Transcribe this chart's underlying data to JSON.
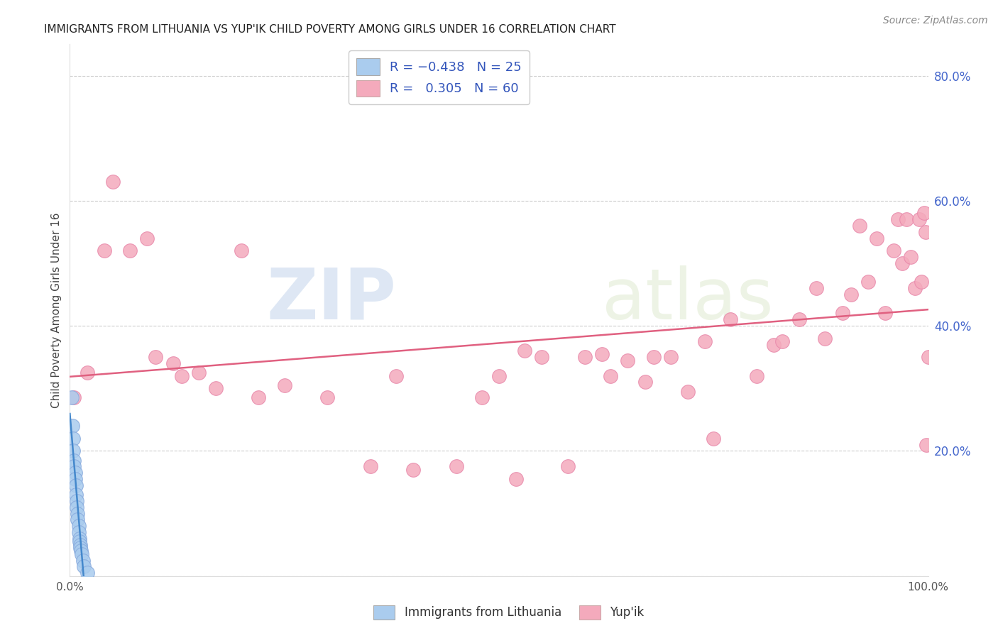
{
  "title": "IMMIGRANTS FROM LITHUANIA VS YUP'IK CHILD POVERTY AMONG GIRLS UNDER 16 CORRELATION CHART",
  "source": "Source: ZipAtlas.com",
  "ylabel": "Child Poverty Among Girls Under 16",
  "xlim": [
    0,
    1.0
  ],
  "ylim": [
    0,
    0.85
  ],
  "background_color": "#ffffff",
  "grid_color": "#cccccc",
  "blue_color": "#aaccee",
  "pink_color": "#f4aabc",
  "blue_edge_color": "#88aadd",
  "pink_edge_color": "#e888aa",
  "blue_line_color": "#4488cc",
  "pink_line_color": "#e06080",
  "ytick_color": "#4466cc",
  "xtick_color": "#555555",
  "blue_scatter_x": [
    0.002,
    0.003,
    0.004,
    0.004,
    0.005,
    0.005,
    0.006,
    0.006,
    0.007,
    0.007,
    0.008,
    0.008,
    0.009,
    0.009,
    0.01,
    0.01,
    0.011,
    0.011,
    0.012,
    0.012,
    0.013,
    0.014,
    0.015,
    0.016,
    0.02
  ],
  "blue_scatter_y": [
    0.285,
    0.24,
    0.22,
    0.2,
    0.185,
    0.175,
    0.165,
    0.155,
    0.145,
    0.13,
    0.12,
    0.11,
    0.1,
    0.09,
    0.08,
    0.07,
    0.06,
    0.055,
    0.05,
    0.045,
    0.04,
    0.035,
    0.025,
    0.015,
    0.005
  ],
  "pink_scatter_x": [
    0.005,
    0.02,
    0.04,
    0.05,
    0.07,
    0.09,
    0.1,
    0.12,
    0.13,
    0.15,
    0.17,
    0.2,
    0.22,
    0.25,
    0.3,
    0.35,
    0.38,
    0.4,
    0.45,
    0.48,
    0.5,
    0.52,
    0.53,
    0.55,
    0.58,
    0.6,
    0.62,
    0.63,
    0.65,
    0.67,
    0.68,
    0.7,
    0.72,
    0.74,
    0.75,
    0.77,
    0.8,
    0.82,
    0.83,
    0.85,
    0.87,
    0.88,
    0.9,
    0.91,
    0.92,
    0.93,
    0.94,
    0.95,
    0.96,
    0.965,
    0.97,
    0.975,
    0.98,
    0.985,
    0.99,
    0.992,
    0.995,
    0.997,
    0.998,
    1.0
  ],
  "pink_scatter_y": [
    0.285,
    0.325,
    0.52,
    0.63,
    0.52,
    0.54,
    0.35,
    0.34,
    0.32,
    0.325,
    0.3,
    0.52,
    0.285,
    0.305,
    0.285,
    0.175,
    0.32,
    0.17,
    0.175,
    0.285,
    0.32,
    0.155,
    0.36,
    0.35,
    0.175,
    0.35,
    0.355,
    0.32,
    0.345,
    0.31,
    0.35,
    0.35,
    0.295,
    0.375,
    0.22,
    0.41,
    0.32,
    0.37,
    0.375,
    0.41,
    0.46,
    0.38,
    0.42,
    0.45,
    0.56,
    0.47,
    0.54,
    0.42,
    0.52,
    0.57,
    0.5,
    0.57,
    0.51,
    0.46,
    0.57,
    0.47,
    0.58,
    0.55,
    0.21,
    0.35
  ]
}
